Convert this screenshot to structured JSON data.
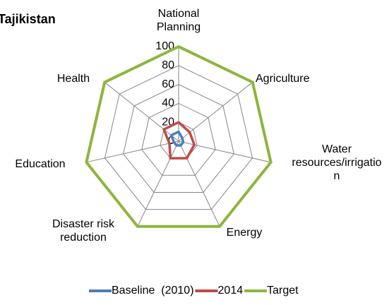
{
  "chart_data": {
    "type": "radar",
    "title": "Tajikistan",
    "categories": [
      "National Planning",
      "Agriculture",
      "Water resources/irrigation",
      "Energy",
      "Disaster risk reduction",
      "Education",
      "Health"
    ],
    "series": [
      {
        "name": "Baseline  (2010)",
        "color": "#4a7ebb",
        "values": [
          10,
          5,
          5,
          5,
          5,
          5,
          10
        ]
      },
      {
        "name": "2014",
        "color": "#be4b48",
        "values": [
          20,
          15,
          17,
          20,
          20,
          10,
          20
        ]
      },
      {
        "name": "Target",
        "color": "#8db63c",
        "values": [
          100,
          100,
          100,
          100,
          100,
          100,
          100
        ]
      }
    ],
    "ylim": [
      0,
      100
    ],
    "yticks": [
      0,
      20,
      40,
      60,
      80,
      100
    ],
    "grid": true,
    "legend": "bottom"
  }
}
